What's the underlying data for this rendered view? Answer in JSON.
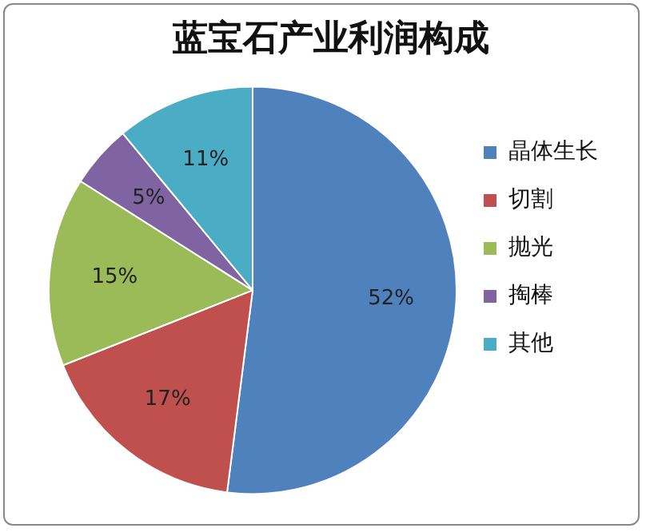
{
  "chart_data": {
    "type": "pie",
    "title": "蓝宝石产业利润构成",
    "categories": [
      "晶体生长",
      "切割",
      "抛光",
      "掏棒",
      "其他"
    ],
    "values": [
      52,
      17,
      15,
      5,
      11
    ],
    "colors": [
      "#4f81bd",
      "#c0504d",
      "#9bbb59",
      "#8064a2",
      "#4bacc6"
    ],
    "value_labels": [
      "52%",
      "17%",
      "15%",
      "5%",
      "11%"
    ],
    "legend": "right"
  }
}
